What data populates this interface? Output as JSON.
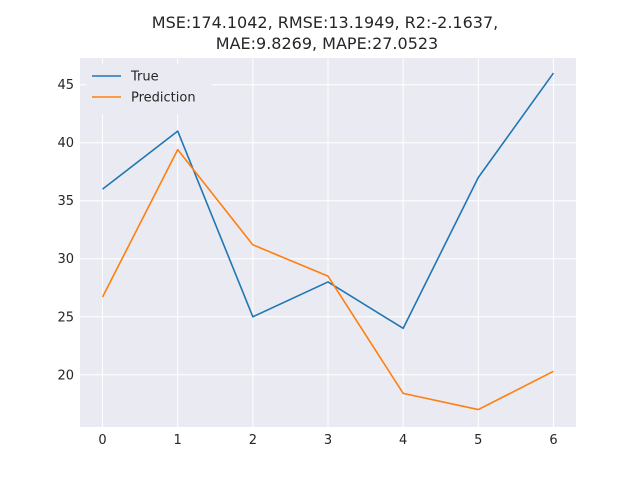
{
  "chart_data": {
    "type": "line",
    "title_lines": [
      "MSE:174.1042, RMSE:13.1949, R2:-2.1637,",
      "MAE:9.8269, MAPE:27.0523"
    ],
    "x": [
      0,
      1,
      2,
      3,
      4,
      5,
      6
    ],
    "x_ticks": [
      "0",
      "1",
      "2",
      "3",
      "4",
      "5",
      "6"
    ],
    "y_ticks": [
      "20",
      "25",
      "30",
      "35",
      "40",
      "45"
    ],
    "xlim": [
      -0.3,
      6.3
    ],
    "ylim": [
      15.5,
      47.3
    ],
    "grid": true,
    "legend_position": "top-left",
    "series": [
      {
        "name": "True",
        "color": "#1f77b4",
        "values": [
          36,
          41,
          25,
          28,
          24,
          37,
          46
        ]
      },
      {
        "name": "Prediction",
        "color": "#ff7f0e",
        "values": [
          26.7,
          39.4,
          31.2,
          28.5,
          18.4,
          17.0,
          20.3
        ]
      }
    ],
    "plot_background": "#eaeaf2"
  }
}
